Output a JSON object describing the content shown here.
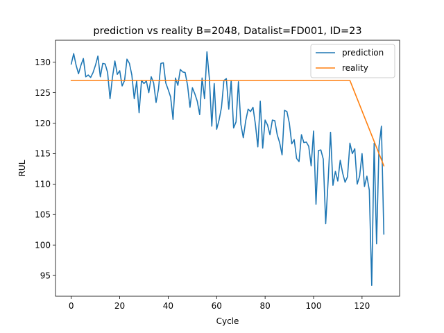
{
  "chart_data": {
    "type": "line",
    "title": "prediction vs reality B=2048, Datalist=FD001, ID=23",
    "xlabel": "Cycle",
    "ylabel": "RUL",
    "xlim": [
      -6.5,
      135.5
    ],
    "ylim": [
      91.6,
      133.6
    ],
    "xticks": [
      0,
      20,
      40,
      60,
      80,
      100,
      120
    ],
    "yticks": [
      95,
      100,
      105,
      110,
      115,
      120,
      125,
      130
    ],
    "grid": false,
    "legend_position": "top-right",
    "series": [
      {
        "name": "prediction",
        "color": "#1f77b4",
        "x": [
          0,
          1,
          2,
          3,
          4,
          5,
          6,
          7,
          8,
          9,
          10,
          11,
          12,
          13,
          14,
          15,
          16,
          17,
          18,
          19,
          20,
          21,
          22,
          23,
          24,
          25,
          26,
          27,
          28,
          29,
          30,
          31,
          32,
          33,
          34,
          35,
          36,
          37,
          38,
          39,
          40,
          41,
          42,
          43,
          44,
          45,
          46,
          47,
          48,
          49,
          50,
          51,
          52,
          53,
          54,
          55,
          56,
          57,
          58,
          59,
          60,
          61,
          62,
          63,
          64,
          65,
          66,
          67,
          68,
          69,
          70,
          71,
          72,
          73,
          74,
          75,
          76,
          77,
          78,
          79,
          80,
          81,
          82,
          83,
          84,
          85,
          86,
          87,
          88,
          89,
          90,
          91,
          92,
          93,
          94,
          95,
          96,
          97,
          98,
          99,
          100,
          101,
          102,
          103,
          104,
          105,
          106,
          107,
          108,
          109,
          110,
          111,
          112,
          113,
          114,
          115,
          116,
          117,
          118,
          119,
          120,
          121,
          122,
          123,
          124,
          125,
          126,
          127,
          128,
          129
        ],
        "y": [
          129.7,
          131.4,
          129.5,
          128.1,
          129.5,
          130.6,
          127.6,
          127.9,
          127.5,
          128.3,
          129.5,
          131.0,
          127.6,
          129.8,
          129.7,
          128.3,
          124.0,
          127.5,
          130.2,
          128.0,
          128.6,
          126.1,
          127.0,
          130.5,
          129.8,
          127.9,
          124.0,
          126.9,
          121.7,
          127.0,
          126.5,
          126.9,
          125.0,
          127.6,
          126.6,
          123.4,
          125.6,
          129.8,
          129.9,
          126.6,
          125.5,
          124.3,
          120.6,
          127.4,
          126.2,
          128.8,
          128.4,
          128.3,
          126.2,
          122.6,
          125.8,
          124.8,
          123.6,
          121.4,
          127.4,
          124.0,
          131.7,
          127.3,
          119.5,
          126.5,
          119.0,
          120.5,
          122.6,
          127.0,
          127.3,
          122.3,
          127.0,
          119.2,
          120.2,
          126.8,
          119.8,
          117.6,
          120.4,
          122.3,
          121.9,
          122.6,
          119.8,
          116.1,
          123.6,
          115.9,
          120.5,
          119.7,
          118.1,
          120.5,
          120.4,
          118.1,
          116.8,
          114.8,
          122.1,
          121.9,
          120.0,
          116.6,
          117.3,
          114.2,
          113.7,
          118.1,
          116.8,
          116.9,
          116.2,
          113.0,
          118.7,
          106.7,
          115.5,
          115.6,
          114.1,
          103.5,
          110.5,
          118.5,
          109.8,
          112.1,
          110.5,
          113.9,
          111.8,
          110.3,
          111.2,
          116.7,
          115.0,
          115.8,
          110.0,
          111.3,
          115.0,
          109.6,
          111.3,
          109.0,
          93.4,
          116.7,
          100.2,
          116.2,
          119.5,
          101.8
        ]
      },
      {
        "name": "reality",
        "color": "#ff7f0e",
        "x": [
          0,
          115,
          129
        ],
        "y": [
          127,
          127,
          113
        ]
      }
    ]
  }
}
